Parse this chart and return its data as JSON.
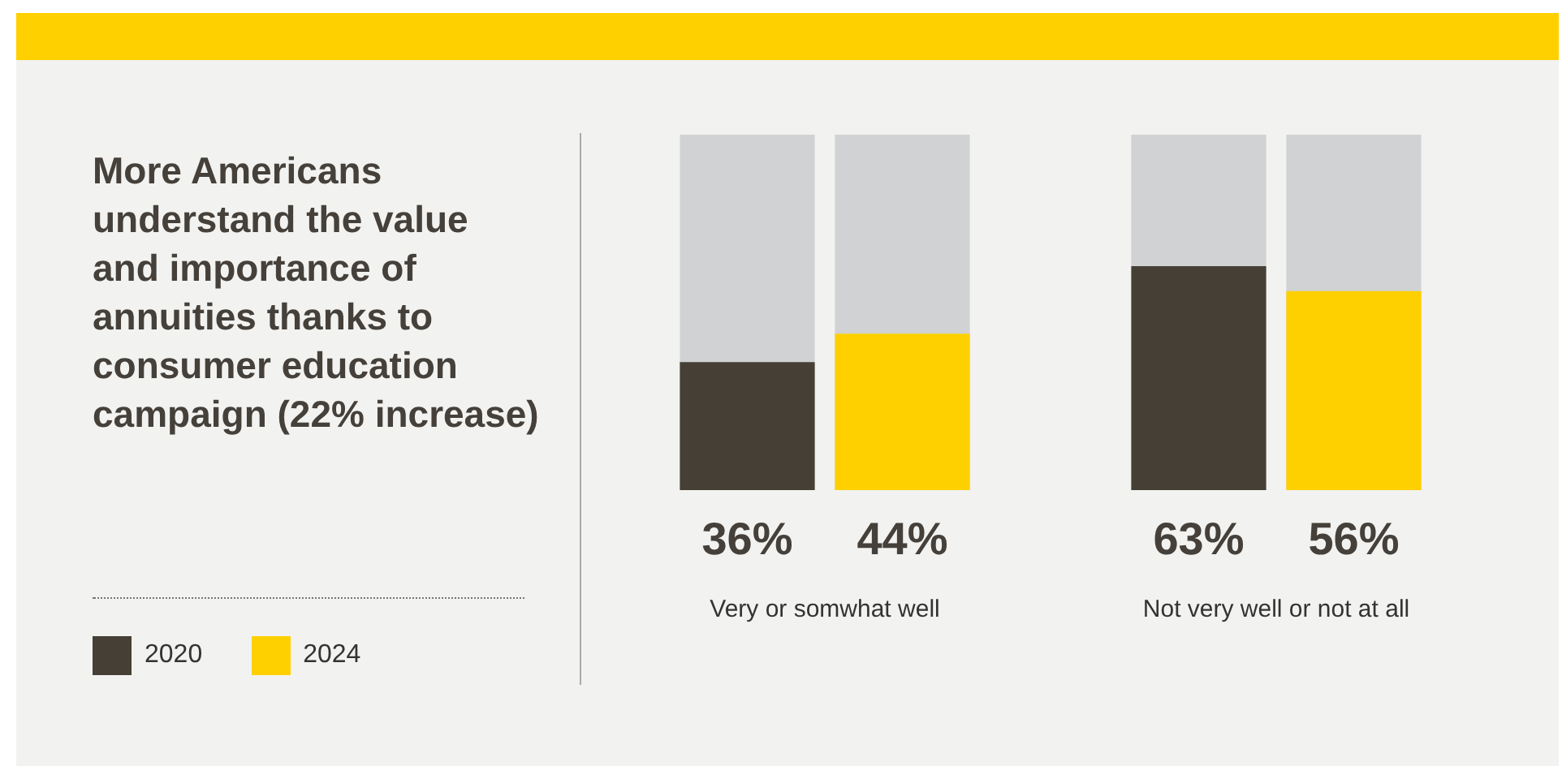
{
  "chart_data": {
    "type": "bar",
    "title": "More Americans understand the value and importance of annuities thanks to consumer education campaign (22% increase)",
    "categories": [
      "Very or somwhat well",
      "Not very well or not at all"
    ],
    "series": [
      {
        "name": "2020",
        "color": "#453f36",
        "values": [
          36,
          63
        ],
        "value_labels": [
          "36%",
          "63%"
        ]
      },
      {
        "name": "2024",
        "color": "#ffd000",
        "values": [
          44,
          56
        ],
        "value_labels": [
          "44%",
          "56%"
        ]
      }
    ],
    "ylim": [
      0,
      100
    ],
    "tick_labels": "x",
    "grid": false,
    "legend": "left"
  }
}
